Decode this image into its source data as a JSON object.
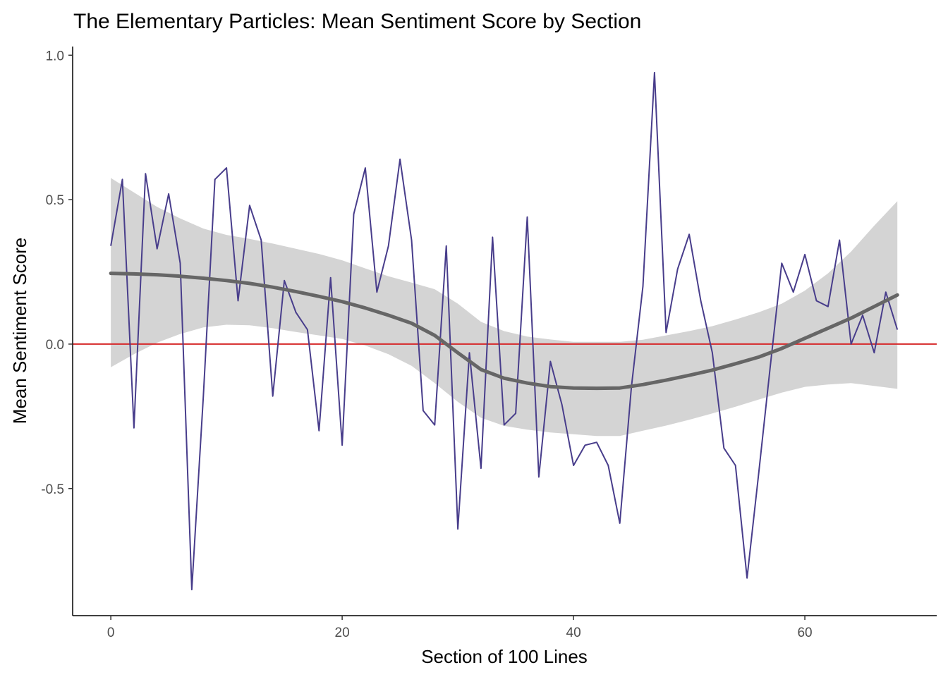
{
  "chart_data": {
    "type": "line",
    "title": "The Elementary Particles: Mean Sentiment Score by Section",
    "xlabel": "Section of 100 Lines",
    "ylabel": "Mean Sentiment Score",
    "xlim": [
      -3.3,
      71.4
    ],
    "ylim": [
      -0.94,
      1.03
    ],
    "x_ticks": [
      0,
      20,
      40,
      60
    ],
    "x_tick_labels": [
      "0",
      "20",
      "40",
      "60"
    ],
    "y_ticks": [
      -0.5,
      0.0,
      0.5,
      1.0
    ],
    "y_tick_labels": [
      "-0.5",
      "0.0",
      "0.5",
      "1.0"
    ],
    "grid": false,
    "reference_line": {
      "y": 0,
      "color": "#d62728"
    },
    "series": [
      {
        "kind": "line",
        "color": "#483d8b",
        "x": [
          0,
          1,
          2,
          3,
          4,
          5,
          6,
          7,
          8,
          9,
          10,
          11,
          12,
          13,
          14,
          15,
          16,
          17,
          18,
          19,
          20,
          21,
          22,
          23,
          24,
          25,
          26,
          27,
          28,
          29,
          30,
          31,
          32,
          33,
          34,
          35,
          36,
          37,
          38,
          39,
          40,
          41,
          42,
          43,
          44,
          45,
          46,
          47,
          48,
          49,
          50,
          51,
          52,
          53,
          54,
          55,
          56,
          57,
          58,
          59,
          60,
          61,
          62,
          63,
          64,
          65,
          66,
          67,
          68
        ],
        "values": [
          0.34,
          0.57,
          -0.29,
          0.59,
          0.33,
          0.52,
          0.28,
          -0.85,
          -0.18,
          0.57,
          0.61,
          0.15,
          0.48,
          0.36,
          -0.18,
          0.22,
          0.11,
          0.05,
          -0.3,
          0.23,
          -0.35,
          0.45,
          0.61,
          0.18,
          0.34,
          0.64,
          0.36,
          -0.23,
          -0.28,
          0.34,
          -0.64,
          -0.03,
          -0.43,
          0.37,
          -0.28,
          -0.24,
          0.44,
          -0.46,
          -0.06,
          -0.21,
          -0.42,
          -0.35,
          -0.34,
          -0.42,
          -0.62,
          -0.15,
          0.2,
          0.94,
          0.04,
          0.26,
          0.38,
          0.15,
          -0.03,
          -0.36,
          -0.42,
          -0.81,
          -0.45,
          -0.08,
          0.28,
          0.18,
          0.31,
          0.15,
          0.13,
          0.36,
          0.0,
          0.1,
          -0.03,
          0.18,
          0.05
        ]
      },
      {
        "kind": "smooth",
        "color": "#666666",
        "band_color": "#d4d4d4",
        "x": [
          0,
          2,
          4,
          6,
          8,
          10,
          12,
          14,
          16,
          18,
          20,
          22,
          24,
          26,
          28,
          30,
          32,
          34,
          36,
          38,
          40,
          42,
          44,
          46,
          48,
          50,
          52,
          54,
          56,
          58,
          60,
          62,
          64,
          66,
          68
        ],
        "values": [
          0.245,
          0.243,
          0.24,
          0.235,
          0.228,
          0.22,
          0.21,
          0.197,
          0.182,
          0.165,
          0.147,
          0.125,
          0.1,
          0.072,
          0.03,
          -0.03,
          -0.088,
          -0.118,
          -0.135,
          -0.147,
          -0.152,
          -0.153,
          -0.152,
          -0.14,
          -0.125,
          -0.108,
          -0.09,
          -0.068,
          -0.045,
          -0.015,
          0.02,
          0.055,
          0.09,
          0.13,
          0.17
        ],
        "lower": [
          -0.08,
          -0.035,
          0.005,
          0.035,
          0.058,
          0.067,
          0.065,
          0.055,
          0.042,
          0.03,
          0.018,
          -0.005,
          -0.035,
          -0.075,
          -0.135,
          -0.2,
          -0.255,
          -0.283,
          -0.296,
          -0.306,
          -0.312,
          -0.318,
          -0.318,
          -0.3,
          -0.282,
          -0.262,
          -0.24,
          -0.217,
          -0.192,
          -0.168,
          -0.148,
          -0.14,
          -0.135,
          -0.145,
          -0.155
        ],
        "upper": [
          0.575,
          0.525,
          0.475,
          0.435,
          0.4,
          0.378,
          0.364,
          0.348,
          0.33,
          0.312,
          0.29,
          0.262,
          0.235,
          0.213,
          0.19,
          0.14,
          0.077,
          0.045,
          0.026,
          0.016,
          0.008,
          0.008,
          0.008,
          0.015,
          0.03,
          0.045,
          0.062,
          0.085,
          0.11,
          0.14,
          0.185,
          0.245,
          0.32,
          0.41,
          0.495
        ]
      }
    ]
  }
}
